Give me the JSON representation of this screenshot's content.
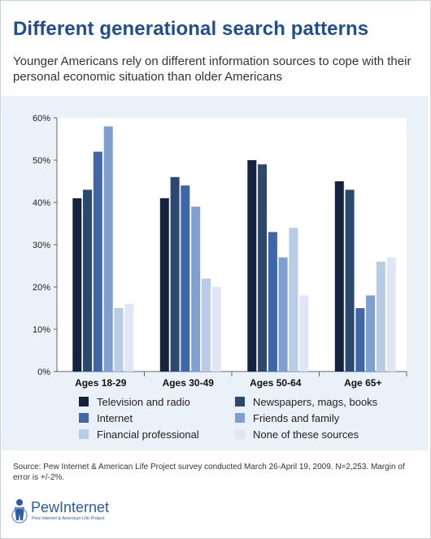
{
  "header": {
    "title": "Different generational search patterns",
    "subtitle": "Younger Americans rely on different information sources to cope with their personal economic situation than older Americans"
  },
  "chart_data": {
    "type": "bar",
    "categories": [
      "Ages 18-29",
      "Ages 30-49",
      "Ages 50-64",
      "Age 65+"
    ],
    "series": [
      {
        "name": "Television and radio",
        "color": "#132340",
        "values": [
          41,
          41,
          50,
          45
        ]
      },
      {
        "name": "Newspapers, mags, books",
        "color": "#2c4870",
        "values": [
          43,
          46,
          49,
          43
        ]
      },
      {
        "name": "Internet",
        "color": "#3e66ab",
        "values": [
          52,
          44,
          33,
          15
        ]
      },
      {
        "name": "Friends and family",
        "color": "#7e9fd0",
        "values": [
          58,
          39,
          27,
          18
        ]
      },
      {
        "name": "Financial professional",
        "color": "#b8cce8",
        "values": [
          15,
          22,
          34,
          26
        ]
      },
      {
        "name": "None of these sources",
        "color": "#dfe7f5",
        "values": [
          16,
          20,
          18,
          27
        ]
      }
    ],
    "ylim": [
      0,
      60
    ],
    "yticks": [
      "0%",
      "10%",
      "20%",
      "30%",
      "40%",
      "50%",
      "60%"
    ],
    "xlabel": "",
    "ylabel": "",
    "grid": false,
    "legend_position": "bottom"
  },
  "footer": {
    "source": "Source: Pew Internet & American Life Project survey conducted March 26-April 19, 2009. N=2,253. Margin of error is +/-2%.",
    "logo_name": "PewInternet",
    "logo_sub": "Pew Internet & American Life Project"
  }
}
